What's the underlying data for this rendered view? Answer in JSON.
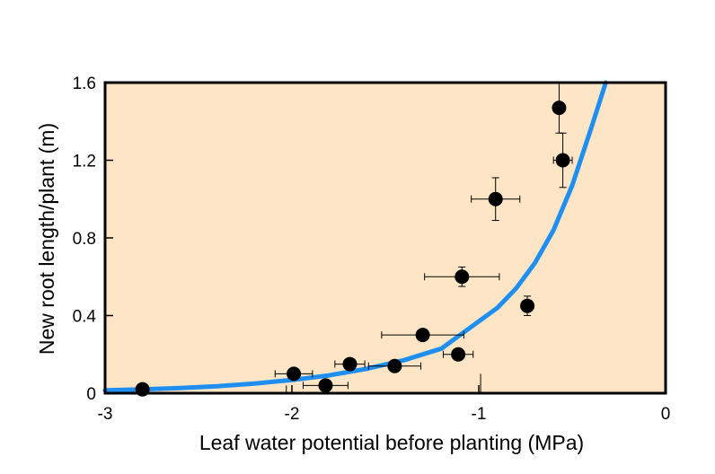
{
  "chart_data": {
    "type": "scatter",
    "title": "",
    "xlabel": "Leaf water potential before planting (MPa)",
    "ylabel": "New root length/plant (m)",
    "xlim": [
      -3,
      0
    ],
    "ylim": [
      0,
      1.6
    ],
    "xticks": [
      -3,
      -2,
      -1,
      0
    ],
    "xtick_labels": [
      "-3",
      "-2",
      "-1",
      "0"
    ],
    "yticks": [
      0,
      0.4,
      0.8,
      1.2,
      1.6
    ],
    "ytick_labels": [
      "0",
      "0.4",
      "0.8",
      "1.2",
      "1.6"
    ],
    "grid": false,
    "legend": "none",
    "colors": {
      "plot_background": "#FDE5C5",
      "curve": "#1E8FF0",
      "points": "#000000",
      "frame": "#000000"
    },
    "points": [
      {
        "x": -2.8,
        "y": 0.02,
        "xerr": null,
        "yerr": null
      },
      {
        "x": -1.99,
        "y": 0.1,
        "xerr": 0.1,
        "yerr": null
      },
      {
        "x": -1.82,
        "y": 0.04,
        "xerr": 0.12,
        "yerr": null
      },
      {
        "x": -1.69,
        "y": 0.15,
        "xerr": 0.08,
        "yerr": null
      },
      {
        "x": -1.45,
        "y": 0.14,
        "xerr": 0.14,
        "yerr": null
      },
      {
        "x": -1.3,
        "y": 0.3,
        "xerr": 0.22,
        "yerr": null
      },
      {
        "x": -1.11,
        "y": 0.2,
        "xerr": 0.08,
        "yerr": null
      },
      {
        "x": -1.09,
        "y": 0.6,
        "xerr": 0.2,
        "yerr": 0.05
      },
      {
        "x": -0.91,
        "y": 1.0,
        "xerr": 0.13,
        "yerr": 0.11
      },
      {
        "x": -0.74,
        "y": 0.45,
        "xerr": null,
        "yerr": 0.05
      },
      {
        "x": -0.57,
        "y": 1.47,
        "xerr": null,
        "yerr": 0.13
      },
      {
        "x": -0.55,
        "y": 1.2,
        "xerr": 0.05,
        "yerr": 0.14
      }
    ],
    "series": [
      {
        "type": "fit-curve",
        "x": [
          -3.0,
          -2.8,
          -2.6,
          -2.4,
          -2.2,
          -2.0,
          -1.8,
          -1.6,
          -1.4,
          -1.2,
          -1.0,
          -0.9,
          -0.8,
          -0.7,
          -0.6,
          -0.5,
          -0.4,
          -0.32
        ],
        "y": [
          0.015,
          0.02,
          0.027,
          0.036,
          0.05,
          0.068,
          0.092,
          0.126,
          0.17,
          0.23,
          0.37,
          0.44,
          0.54,
          0.67,
          0.84,
          1.07,
          1.36,
          1.6
        ]
      }
    ],
    "extra_marks": [
      {
        "x": -2.03,
        "y_from": 0.0,
        "y_to": 0.04
      },
      {
        "x": -0.99,
        "y_from": 0.0,
        "y_to": 0.1
      }
    ]
  }
}
